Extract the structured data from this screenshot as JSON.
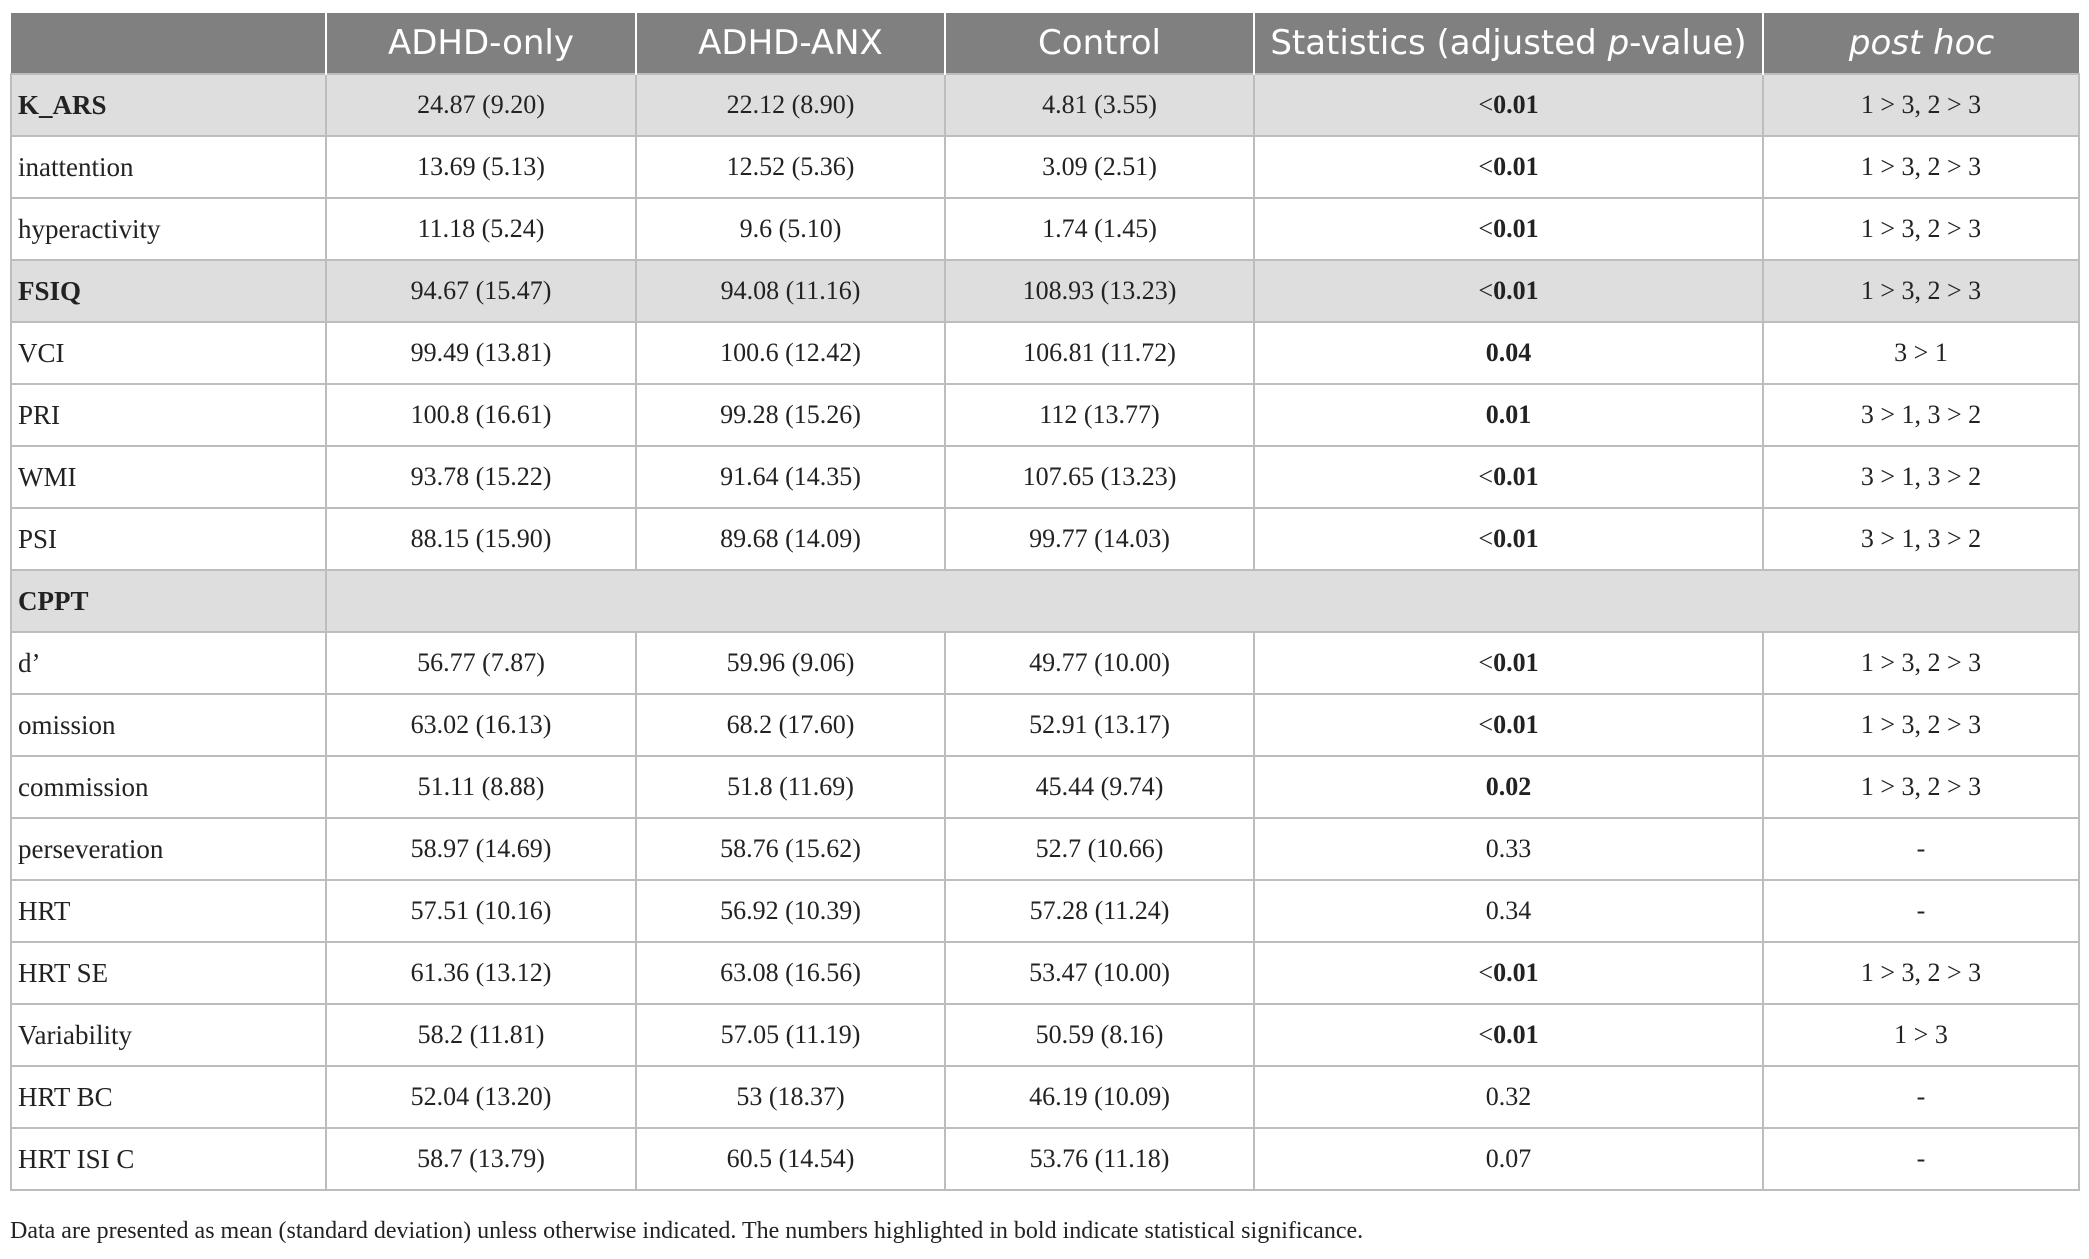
{
  "header": {
    "col0": "",
    "col1": "ADHD-only",
    "col2": "ADHD-ANX",
    "col3": "Control",
    "col4_pre": "Statistics (adjusted ",
    "col4_ital": "p",
    "col4_post": "-value)",
    "col5": "post hoc"
  },
  "rows": [
    {
      "label": "K_ARS",
      "c1": "24.87 (9.20)",
      "c2": "22.12 (8.90)",
      "c3": "4.81 (3.55)",
      "lt": "<",
      "p": "0.01",
      "post": "1 > 3, 2 > 3"
    },
    {
      "label": "inattention",
      "c1": "13.69 (5.13)",
      "c2": "12.52 (5.36)",
      "c3": "3.09 (2.51)",
      "lt": "<",
      "p": "0.01",
      "post": "1 > 3, 2 > 3"
    },
    {
      "label": "hyperactivity",
      "c1": "11.18 (5.24)",
      "c2": "9.6 (5.10)",
      "c3": "1.74 (1.45)",
      "lt": "<",
      "p": "0.01",
      "post": "1 > 3, 2 > 3"
    },
    {
      "label": "FSIQ",
      "c1": "94.67 (15.47)",
      "c2": "94.08 (11.16)",
      "c3": "108.93 (13.23)",
      "lt": "<",
      "p": "0.01",
      "post": "1 > 3, 2 > 3"
    },
    {
      "label": "VCI",
      "c1": "99.49 (13.81)",
      "c2": "100.6 (12.42)",
      "c3": "106.81 (11.72)",
      "lt": "",
      "p": "0.04",
      "post": "3 > 1"
    },
    {
      "label": "PRI",
      "c1": "100.8 (16.61)",
      "c2": "99.28 (15.26)",
      "c3": "112 (13.77)",
      "lt": "",
      "p": "0.01",
      "post": "3 > 1, 3 > 2"
    },
    {
      "label": "WMI",
      "c1": "93.78 (15.22)",
      "c2": "91.64 (14.35)",
      "c3": "107.65 (13.23)",
      "lt": "<",
      "p": "0.01",
      "post": "3 > 1, 3 > 2"
    },
    {
      "label": "PSI",
      "c1": "88.15 (15.90)",
      "c2": "89.68 (14.09)",
      "c3": "99.77 (14.03)",
      "lt": "<",
      "p": "0.01",
      "post": "3 > 1, 3 > 2"
    },
    {
      "label": "CPPT"
    },
    {
      "label": "d’",
      "c1": "56.77 (7.87)",
      "c2": "59.96 (9.06)",
      "c3": "49.77 (10.00)",
      "lt": "<",
      "p": "0.01",
      "post": "1 > 3, 2 > 3"
    },
    {
      "label": "omission",
      "c1": "63.02 (16.13)",
      "c2": "68.2 (17.60)",
      "c3": "52.91 (13.17)",
      "lt": "<",
      "p": "0.01",
      "post": "1 > 3, 2 > 3"
    },
    {
      "label": "commission",
      "c1": "51.11 (8.88)",
      "c2": "51.8 (11.69)",
      "c3": "45.44 (9.74)",
      "lt": "",
      "p": "0.02",
      "post": "1 > 3, 2 > 3"
    },
    {
      "label": "perseveration",
      "c1": "58.97 (14.69)",
      "c2": "58.76 (15.62)",
      "c3": "52.7 (10.66)",
      "lt": "",
      "p": "0.33",
      "post": "-"
    },
    {
      "label": "HRT",
      "c1": "57.51 (10.16)",
      "c2": "56.92 (10.39)",
      "c3": "57.28 (11.24)",
      "lt": "",
      "p": "0.34",
      "post": "-"
    },
    {
      "label": "HRT SE",
      "c1": "61.36 (13.12)",
      "c2": "63.08 (16.56)",
      "c3": "53.47 (10.00)",
      "lt": "<",
      "p": "0.01",
      "post": "1 > 3, 2 > 3"
    },
    {
      "label": "Variability",
      "c1": "58.2 (11.81)",
      "c2": "57.05 (11.19)",
      "c3": "50.59 (8.16)",
      "lt": "<",
      "p": "0.01",
      "post": "1 > 3"
    },
    {
      "label": "HRT BC",
      "c1": "52.04 (13.20)",
      "c2": "53 (18.37)",
      "c3": "46.19 (10.09)",
      "lt": "",
      "p": "0.32",
      "post": "-"
    },
    {
      "label": "HRT ISI C",
      "c1": "58.7 (13.79)",
      "c2": "60.5 (14.54)",
      "c3": "53.76 (11.18)",
      "lt": "",
      "p": "0.07",
      "post": "-"
    }
  ],
  "footnote": "Data are presented as mean (standard deviation) unless otherwise indicated. The numbers highlighted in bold indicate statistical significance."
}
